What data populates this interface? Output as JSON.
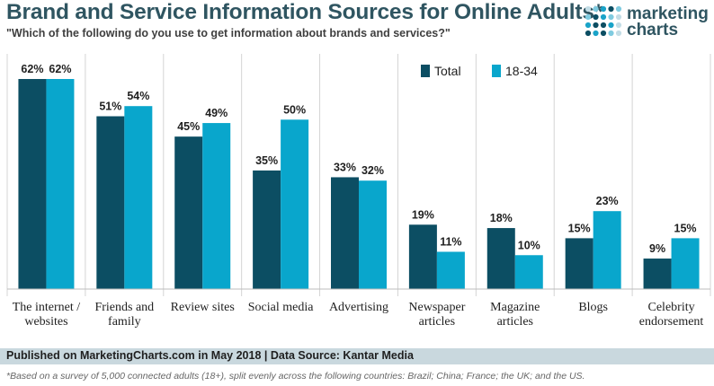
{
  "header": {
    "title": "Brand and Service Information Sources for Online Adults*",
    "subtitle": "\"Which of the following do you use to get information about brands and services?\""
  },
  "logo": {
    "line1": "marketing",
    "line2": "charts",
    "dot_colors": [
      "#0c4e63",
      "#1aa3c8",
      "#7fcbe0",
      "#c3dde6"
    ]
  },
  "chart_data": {
    "type": "bar",
    "categories": [
      [
        "The internet /",
        "websites"
      ],
      [
        "Friends and",
        "family"
      ],
      [
        "Review sites"
      ],
      [
        "Social media"
      ],
      [
        "Advertising"
      ],
      [
        "Newspaper",
        "articles"
      ],
      [
        "Magazine",
        "articles"
      ],
      [
        "Blogs"
      ],
      [
        "Celebrity",
        "endorsement"
      ]
    ],
    "series": [
      {
        "name": "Total",
        "color": "#0c4e63",
        "values": [
          62,
          51,
          45,
          35,
          33,
          19,
          18,
          15,
          9
        ]
      },
      {
        "name": "18-34",
        "color": "#09a6cc",
        "values": [
          62,
          54,
          49,
          50,
          32,
          11,
          10,
          23,
          15
        ]
      }
    ],
    "value_suffix": "%",
    "ylim": [
      0,
      70
    ],
    "legend_position": "top-right",
    "xlabel": "",
    "ylabel": ""
  },
  "footer": {
    "source": "Published on MarketingCharts.com in May 2018 | Data Source: Kantar Media",
    "footnote": "*Based on a survey of 5,000 connected adults (18+), split evenly across the following countries: Brazil; China; France; the UK; and the US."
  }
}
